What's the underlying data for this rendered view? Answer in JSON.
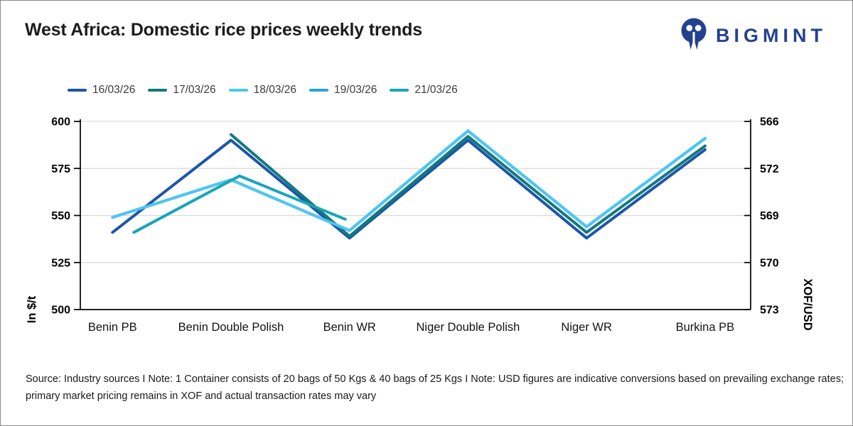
{
  "header": {
    "title": "West Africa: Domestic rice prices weekly trends",
    "brand": "BIGMINT"
  },
  "colors": {
    "brand_blue": "#24418F",
    "axis": "#000000",
    "grid": "#D9D9D9"
  },
  "chart_data": {
    "type": "line",
    "title": "West Africa: Domestic rice prices weekly trends",
    "legend_position": "top",
    "grid": true,
    "categories": [
      "Benin PB",
      "Benin Double Polish",
      "Benin WR",
      "Niger Double Polish",
      "Niger WR",
      "Burkina PB"
    ],
    "series": [
      {
        "name": "16/03/26",
        "color": "#1C56A8",
        "values": [
          541,
          590,
          538,
          590,
          538,
          585
        ]
      },
      {
        "name": "17/03/26",
        "color": "#12797F",
        "values": [
          null,
          593,
          539,
          592,
          541,
          587
        ]
      },
      {
        "name": "18/03/26",
        "color": "#4EC5F2",
        "values": [
          549,
          569,
          542,
          595,
          544,
          591
        ]
      },
      {
        "name": "19/03/26",
        "color": "#2AA2DC",
        "values": [
          549,
          569,
          542,
          595,
          544,
          591
        ]
      },
      {
        "name": "21/03/26",
        "color": "#16A6B8",
        "values": [
          541,
          571,
          548,
          null,
          null,
          null
        ]
      }
    ],
    "left_axis": {
      "title": "In $/t",
      "ticks": [
        600,
        575,
        550,
        525,
        500
      ],
      "range": [
        500,
        600
      ]
    },
    "right_axis": {
      "title": "XOF/USD",
      "ticks": [
        566,
        572,
        569,
        570,
        573
      ]
    }
  },
  "footer": {
    "line1": "Source: Industry sources I Note: 1 Container consists of 20 bags of 50 Kgs & 40 bags of 25 Kgs I Note: USD figures are indicative conversions based on prevailing exchange rates;",
    "line2": "primary market pricing remains in XOF and actual transaction rates may vary"
  }
}
